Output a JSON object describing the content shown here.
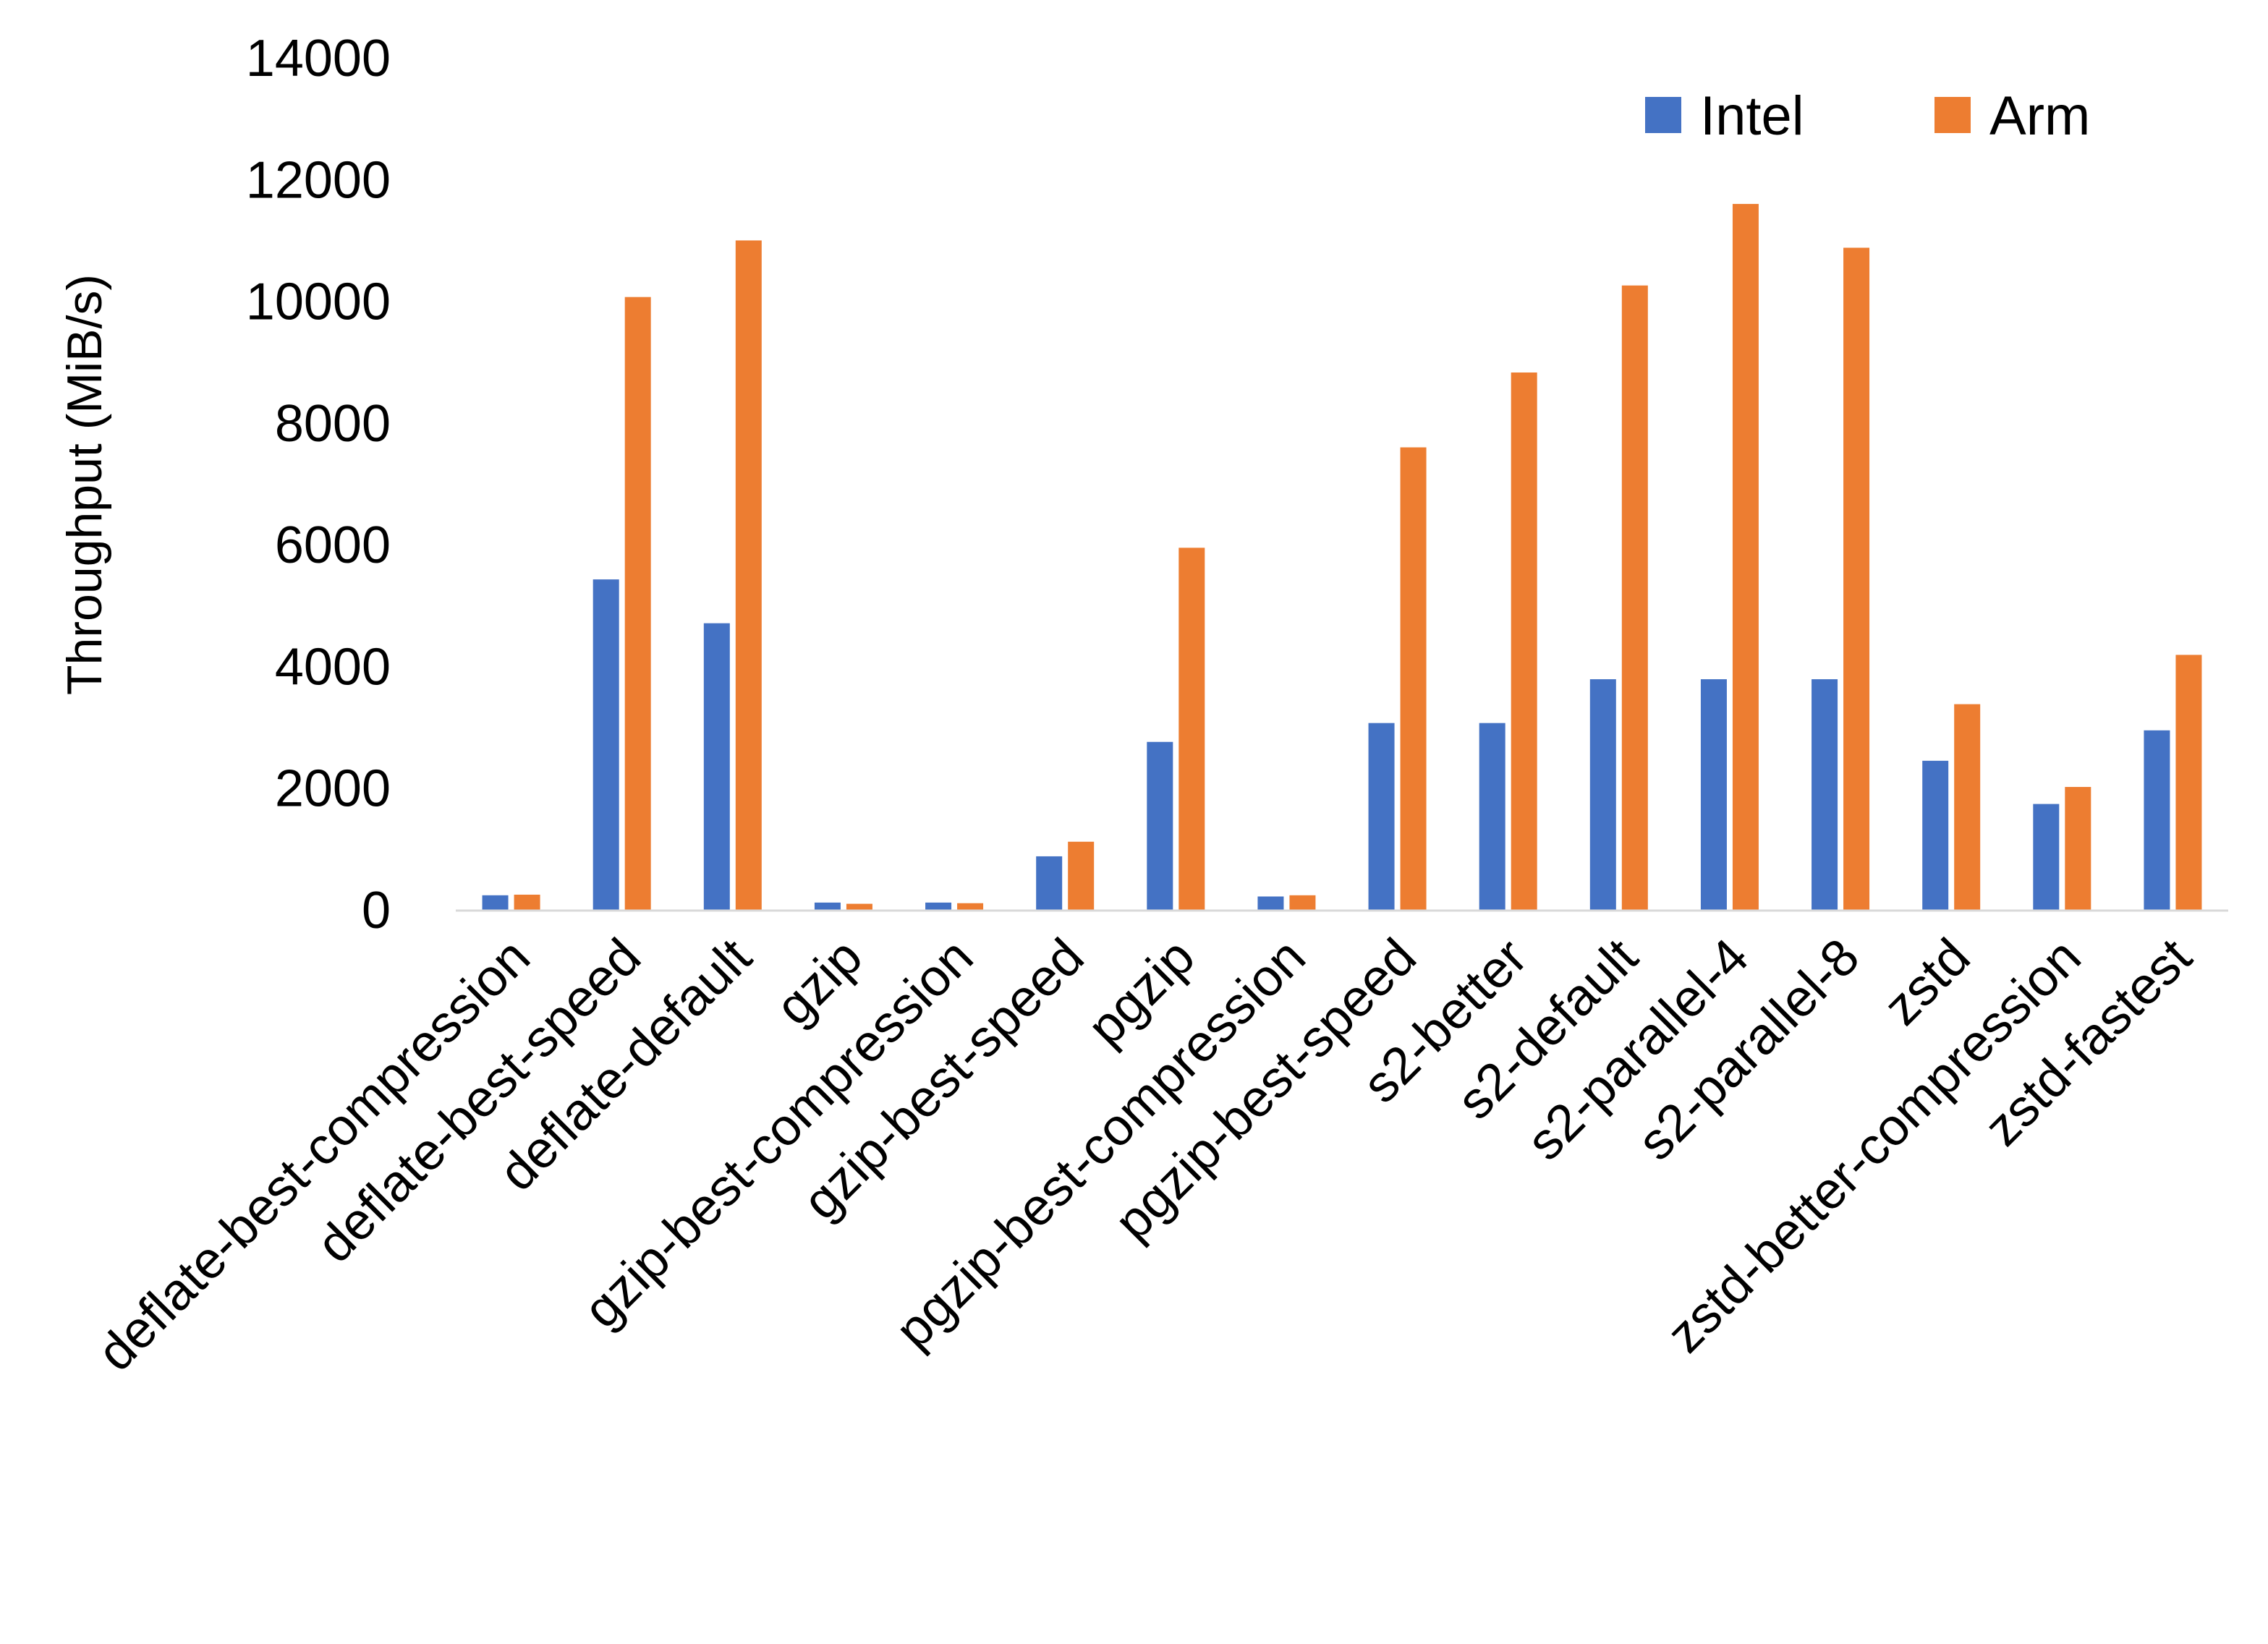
{
  "chart_data": {
    "type": "bar",
    "title": "",
    "xlabel": "",
    "ylabel": "Throughput (MiB/s)",
    "ylim": [
      0,
      14000
    ],
    "yticks": [
      0,
      2000,
      4000,
      6000,
      8000,
      10000,
      12000,
      14000
    ],
    "grid": false,
    "legend_position": "top-right",
    "categories": [
      "deflate-best-compression",
      "deflate-best-speed",
      "deflate-default",
      "gzip",
      "gzip-best-compression",
      "gzip-best-speed",
      "pgzip",
      "pgzip-best-compression",
      "pgzip-best-speed",
      "s2-better",
      "s2-default",
      "s2-parallel-4",
      "s2-parallel-8",
      "zstd",
      "zstd-better-compression",
      "zstd-fastest"
    ],
    "series": [
      {
        "name": "Intel",
        "color": "#4472C4",
        "values": [
          240,
          5430,
          4710,
          120,
          120,
          880,
          2760,
          220,
          3070,
          3070,
          3790,
          3790,
          3790,
          2450,
          1740,
          2950
        ]
      },
      {
        "name": "Arm",
        "color": "#ED7D31",
        "values": [
          250,
          10070,
          11000,
          100,
          110,
          1120,
          5950,
          240,
          7600,
          8830,
          10260,
          11600,
          10880,
          3380,
          2020,
          4190
        ]
      }
    ]
  }
}
